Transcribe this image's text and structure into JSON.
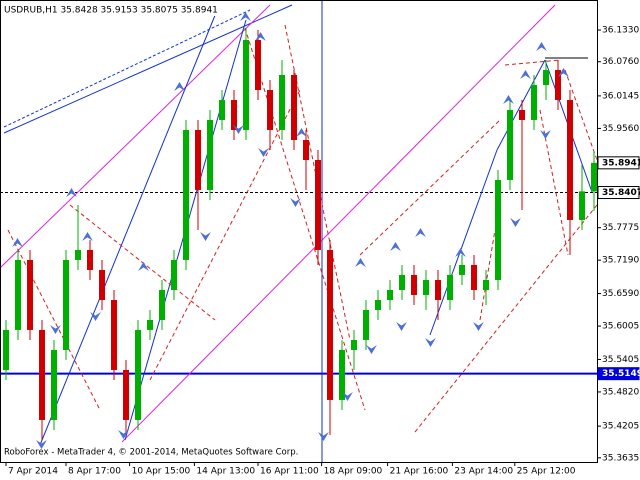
{
  "chart_data": {
    "type": "candlestick",
    "title": "USDRUB,H1  35.8428 35.9153 35.8075 35.8941",
    "annotation": "RoboForex - MetaTrader 4, © 2001-2014, MetaQuotes Software Corp.",
    "up_color": "#00b000",
    "down_color": "#d00000",
    "open": [
      35.5215,
      35.5935,
      35.7194,
      35.5935,
      35.4316,
      35.5575,
      35.7194,
      35.7374,
      35.7014,
      35.6474,
      35.5215,
      35.4316,
      35.5935,
      35.6114,
      35.6654,
      35.7194,
      35.9532,
      35.8453,
      35.9712,
      36.0071,
      35.9532,
      36.1151,
      36.0251,
      35.9532,
      36.0521,
      35.9352,
      35.8992,
      35.7374,
      35.4676,
      35.5575,
      35.5755,
      35.6294,
      35.6474,
      35.6654,
      35.6924,
      35.6564,
      35.6834,
      35.6474,
      35.6924,
      35.7104,
      35.6654,
      35.6834,
      35.8633,
      35.9892,
      35.9712,
      36.0341,
      36.0611,
      36.0071,
      35.7913,
      35.8428
    ],
    "high": [
      35.6114,
      35.7374,
      35.7374,
      35.6114,
      35.5755,
      35.7374,
      35.8183,
      35.7553,
      35.7194,
      35.6654,
      35.5395,
      35.6114,
      35.6294,
      35.6834,
      35.7374,
      35.9712,
      35.9712,
      35.9892,
      36.0251,
      36.0251,
      36.1366,
      36.133,
      36.0431,
      36.0791,
      36.0611,
      35.9532,
      35.9172,
      35.7553,
      35.5755,
      35.5935,
      35.6474,
      35.6654,
      35.6834,
      35.7104,
      35.7104,
      35.7014,
      35.7014,
      35.7104,
      35.7284,
      35.7284,
      35.7014,
      35.8812,
      36.0071,
      36.0071,
      36.0521,
      36.0791,
      36.0791,
      36.0251,
      35.8902,
      35.9153
    ],
    "low": [
      35.5035,
      35.5755,
      35.5755,
      35.3956,
      35.4136,
      35.5395,
      35.7014,
      35.6834,
      35.6294,
      35.5035,
      35.4046,
      35.4136,
      35.5755,
      35.5935,
      35.6474,
      35.7014,
      35.7733,
      35.8273,
      35.9532,
      35.9352,
      35.9352,
      36.0071,
      35.9172,
      35.9352,
      35.9172,
      35.8453,
      35.7104,
      35.4046,
      35.4496,
      35.5215,
      35.5575,
      35.6114,
      35.6294,
      35.6474,
      35.6384,
      35.6294,
      35.6114,
      35.6294,
      35.6744,
      35.6474,
      35.6384,
      35.6654,
      35.8453,
      35.8093,
      35.9532,
      36.0071,
      35.9892,
      35.7284,
      35.7733,
      35.8075
    ],
    "close": [
      35.5935,
      35.7194,
      35.5935,
      35.4316,
      35.5575,
      35.7194,
      35.7374,
      35.7014,
      35.6474,
      35.5215,
      35.4316,
      35.5935,
      35.6114,
      35.6654,
      35.7194,
      35.9532,
      35.8453,
      35.9712,
      36.0071,
      35.9532,
      36.1151,
      36.0251,
      35.9532,
      36.0521,
      35.9352,
      35.8992,
      35.7374,
      35.4676,
      35.5575,
      35.5755,
      35.6294,
      35.6474,
      35.6654,
      35.6924,
      35.6564,
      35.6834,
      35.6474,
      35.6924,
      35.7104,
      35.6654,
      35.6834,
      35.8633,
      35.9892,
      35.9712,
      36.0341,
      36.0611,
      36.0071,
      35.7913,
      35.8428,
      35.8941
    ],
    "xlim": [
      -0.5,
      49.25
    ],
    "xticks": [
      {
        "value": 0,
        "label": "7 Apr 2014"
      },
      {
        "value": 5,
        "label": "8 Apr 17:00"
      },
      {
        "value": 10.3,
        "label": "10 Apr 15:00"
      },
      {
        "value": 15.7,
        "label": "14 Apr 13:00"
      },
      {
        "value": 21,
        "label": "16 Apr 11:00"
      },
      {
        "value": 26.3,
        "label": "18 Apr 09:00"
      },
      {
        "value": 31.8,
        "label": "21 Apr 16:00"
      },
      {
        "value": 37.2,
        "label": "23 Apr 14:00"
      },
      {
        "value": 42.4,
        "label": "25 Apr 12:00"
      }
    ],
    "ylim": [
      35.356,
      36.187
    ],
    "yticks": [
      {
        "value": 36.133,
        "label": "36.1330"
      },
      {
        "value": 36.076,
        "label": "36.0760"
      },
      36.0145,
      {
        "value": 35.956,
        "label": "35.9560"
      },
      35.7775,
      {
        "value": 35.719,
        "label": "35.7190"
      },
      {
        "value": 35.659,
        "label": "35.6590"
      },
      35.6005,
      35.5405,
      {
        "value": 35.482,
        "label": "35.4820"
      },
      35.4205,
      35.3635
    ],
    "price_lines": [
      {
        "value": 35.8941,
        "color": "#000000",
        "line": "none"
      },
      {
        "value": 35.8407,
        "color": "#000000",
        "line": "dashed"
      },
      {
        "value": 35.5149,
        "color": "#0000dd",
        "line": "solid"
      }
    ]
  }
}
